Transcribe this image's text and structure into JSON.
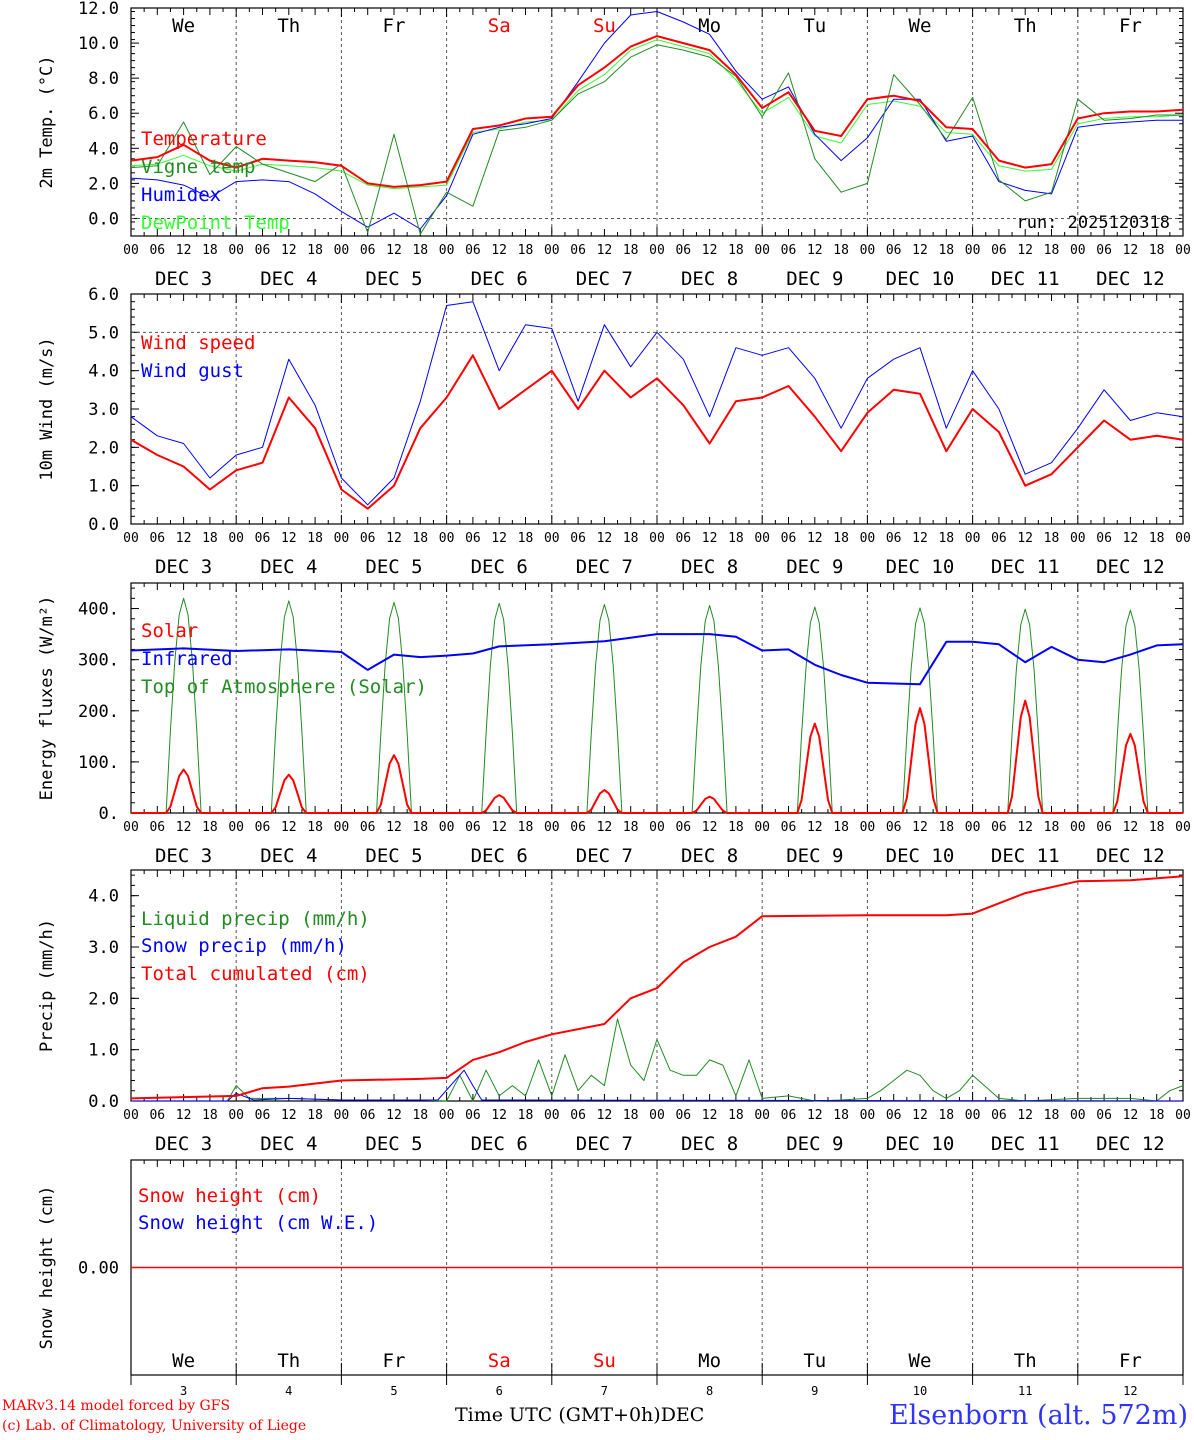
{
  "x_ticks": [
    "00",
    "06",
    "12",
    "18"
  ],
  "days": [
    {
      "dow": "We",
      "dow_color": "#000000",
      "label": "DEC  3",
      "num": "3"
    },
    {
      "dow": "Th",
      "dow_color": "#000000",
      "label": "DEC  4",
      "num": "4"
    },
    {
      "dow": "Fr",
      "dow_color": "#000000",
      "label": "DEC  5",
      "num": "5"
    },
    {
      "dow": "Sa",
      "dow_color": "#ff0000",
      "label": "DEC  6",
      "num": "6"
    },
    {
      "dow": "Su",
      "dow_color": "#ff0000",
      "label": "DEC  7",
      "num": "7"
    },
    {
      "dow": "Mo",
      "dow_color": "#000000",
      "label": "DEC  8",
      "num": "8"
    },
    {
      "dow": "Tu",
      "dow_color": "#000000",
      "label": "DEC  9",
      "num": "9"
    },
    {
      "dow": "We",
      "dow_color": "#000000",
      "label": "DEC 10",
      "num": "10"
    },
    {
      "dow": "Th",
      "dow_color": "#000000",
      "label": "DEC 11",
      "num": "11"
    },
    {
      "dow": "Fr",
      "dow_color": "#000000",
      "label": "DEC 12",
      "num": "12"
    }
  ],
  "footer": {
    "credit_line1": "MARv3.14 model forced by GFS",
    "credit_line2": "(c) Lab. of Climatology, University of Liege",
    "x_axis_title": "Time UTC (GMT+0h)",
    "x_axis_unit": "DEC",
    "station": "Elsenborn (alt. 572m)"
  },
  "chart_data": [
    {
      "type": "line",
      "ylabel": "2m Temp. (°C)",
      "ylim": [
        -1.0,
        12.0
      ],
      "yticks": [
        0,
        2,
        4,
        6,
        8,
        10,
        12
      ],
      "ytick_labels": [
        "0.0",
        "2.0",
        "4.0",
        "6.0",
        "8.0",
        "10.0",
        "12.0"
      ],
      "ref_line": 0,
      "annotation": "run: 2025120318",
      "x_hours": [
        0,
        6,
        12,
        18,
        24,
        30,
        36,
        42,
        48,
        54,
        60,
        66,
        72,
        78,
        84,
        90,
        96,
        102,
        108,
        114,
        120,
        126,
        132,
        138,
        144,
        150,
        156,
        162,
        168,
        174,
        180,
        186,
        192,
        198,
        204,
        210,
        216,
        222,
        228,
        234,
        240
      ],
      "series": [
        {
          "name": "Temperature",
          "color": "#ff0000",
          "width": 2,
          "values": [
            3.3,
            3.5,
            4.2,
            3.3,
            2.9,
            3.4,
            3.3,
            3.2,
            3.0,
            2.0,
            1.8,
            1.9,
            2.1,
            5.1,
            5.3,
            5.7,
            5.8,
            7.6,
            8.6,
            9.8,
            10.4,
            10.0,
            9.6,
            8.2,
            6.3,
            7.2,
            5.0,
            4.7,
            6.8,
            7.0,
            6.7,
            5.2,
            5.1,
            3.3,
            2.9,
            3.1,
            5.7,
            6.0,
            6.1,
            6.1,
            6.2
          ]
        },
        {
          "name": "Vigne temp",
          "color": "#228b22",
          "width": 1,
          "values": [
            2.9,
            3.0,
            5.5,
            2.5,
            4.1,
            3.1,
            2.6,
            2.1,
            3.1,
            -0.8,
            4.8,
            -0.9,
            1.5,
            0.7,
            5.0,
            5.2,
            5.6,
            7.1,
            7.8,
            9.2,
            9.9,
            9.6,
            9.2,
            8.1,
            5.8,
            8.3,
            3.4,
            1.5,
            2.0,
            8.2,
            6.5,
            4.5,
            6.9,
            2.2,
            1.0,
            1.5,
            6.8,
            5.6,
            5.7,
            5.9,
            5.9
          ]
        },
        {
          "name": "Humidex",
          "color": "#0000ff",
          "width": 1,
          "values": [
            2.3,
            2.2,
            1.9,
            1.2,
            2.1,
            2.2,
            2.1,
            1.4,
            0.4,
            -0.5,
            0.3,
            -0.6,
            1.3,
            4.8,
            5.2,
            5.4,
            5.7,
            7.8,
            10.0,
            11.6,
            11.8,
            11.2,
            10.5,
            8.4,
            6.8,
            7.5,
            4.8,
            3.3,
            4.6,
            6.8,
            6.8,
            4.4,
            4.7,
            2.1,
            1.6,
            1.4,
            5.2,
            5.4,
            5.5,
            5.6,
            5.6
          ]
        },
        {
          "name": "DewPoint Temp",
          "color": "#33ff33",
          "width": 1,
          "values": [
            3.0,
            3.1,
            3.6,
            3.0,
            2.7,
            3.1,
            3.0,
            2.9,
            2.7,
            1.9,
            1.7,
            1.8,
            1.9,
            4.9,
            5.1,
            5.5,
            5.6,
            7.3,
            8.2,
            9.6,
            10.2,
            9.8,
            9.4,
            7.9,
            6.0,
            6.9,
            4.7,
            4.3,
            6.5,
            6.7,
            6.4,
            4.9,
            4.8,
            3.0,
            2.7,
            2.8,
            5.4,
            5.7,
            5.8,
            5.8,
            5.9
          ]
        }
      ]
    },
    {
      "type": "line",
      "ylabel": "10m Wind (m/s)",
      "ylim": [
        0.0,
        6.0
      ],
      "yticks": [
        0,
        1,
        2,
        3,
        4,
        5,
        6
      ],
      "ytick_labels": [
        "0.0",
        "1.0",
        "2.0",
        "3.0",
        "4.0",
        "5.0",
        "6.0"
      ],
      "ref_line": 5,
      "x_hours": [
        0,
        6,
        12,
        18,
        24,
        30,
        36,
        42,
        48,
        54,
        60,
        66,
        72,
        78,
        84,
        90,
        96,
        102,
        108,
        114,
        120,
        126,
        132,
        138,
        144,
        150,
        156,
        162,
        168,
        174,
        180,
        186,
        192,
        198,
        204,
        210,
        216,
        222,
        228,
        234,
        240
      ],
      "series": [
        {
          "name": "Wind speed",
          "color": "#ff0000",
          "width": 2,
          "values": [
            2.2,
            1.8,
            1.5,
            0.9,
            1.4,
            1.6,
            3.3,
            2.5,
            0.9,
            0.4,
            1.0,
            2.5,
            3.3,
            4.4,
            3.0,
            3.5,
            4.0,
            3.0,
            4.0,
            3.3,
            3.8,
            3.1,
            2.1,
            3.2,
            3.3,
            3.6,
            2.8,
            1.9,
            2.9,
            3.5,
            3.4,
            1.9,
            3.0,
            2.4,
            1.0,
            1.3,
            2.0,
            2.7,
            2.2,
            2.3,
            2.2
          ]
        },
        {
          "name": "Wind gust",
          "color": "#0000ff",
          "width": 1,
          "values": [
            2.8,
            2.3,
            2.1,
            1.2,
            1.8,
            2.0,
            4.3,
            3.1,
            1.2,
            0.5,
            1.2,
            3.2,
            5.7,
            5.8,
            4.0,
            5.2,
            5.1,
            3.2,
            5.2,
            4.1,
            5.0,
            4.3,
            2.8,
            4.6,
            4.4,
            4.6,
            3.8,
            2.5,
            3.8,
            4.3,
            4.6,
            2.5,
            4.0,
            3.0,
            1.3,
            1.6,
            2.5,
            3.5,
            2.7,
            2.9,
            2.8
          ]
        }
      ]
    },
    {
      "type": "line",
      "ylabel": "Energy fluxes (W/m²)",
      "ylim": [
        0,
        450
      ],
      "yticks": [
        0,
        100,
        200,
        300,
        400
      ],
      "ytick_labels": [
        "0.",
        "100.",
        "200.",
        "300.",
        "400."
      ],
      "days_peaks": {
        "toa_solar": [
          420,
          415,
          412,
          410,
          408,
          406,
          403,
          401,
          399,
          397
        ],
        "solar": [
          85,
          75,
          113,
          35,
          45,
          32,
          175,
          205,
          220,
          155
        ]
      },
      "infrared": {
        "x_hours": [
          0,
          12,
          24,
          36,
          48,
          54,
          60,
          66,
          72,
          78,
          84,
          96,
          108,
          120,
          132,
          138,
          144,
          150,
          156,
          162,
          168,
          180,
          186,
          192,
          198,
          204,
          210,
          216,
          222,
          228,
          234,
          240
        ],
        "values": [
          318,
          322,
          317,
          320,
          315,
          280,
          310,
          305,
          308,
          312,
          326,
          330,
          336,
          350,
          350,
          345,
          318,
          320,
          290,
          270,
          255,
          252,
          335,
          335,
          330,
          295,
          325,
          300,
          295,
          310,
          328,
          330
        ]
      },
      "series": [
        {
          "name": "Solar",
          "color": "#ff0000"
        },
        {
          "name": "Infrared",
          "color": "#0000ff"
        },
        {
          "name": "Top of Atmosphere (Solar)",
          "color": "#228b22"
        }
      ]
    },
    {
      "type": "line",
      "ylabel": "Precip (mm/h)",
      "ylim": [
        0.0,
        4.5
      ],
      "yticks": [
        0,
        1,
        2,
        3,
        4
      ],
      "ytick_labels": [
        "0.0",
        "1.0",
        "2.0",
        "3.0",
        "4.0"
      ],
      "x_hours_total": [
        0,
        24,
        30,
        36,
        48,
        66,
        72,
        78,
        84,
        90,
        96,
        108,
        114,
        120,
        126,
        132,
        138,
        144,
        168,
        180,
        186,
        192,
        204,
        216,
        228,
        240
      ],
      "series": [
        {
          "name": "Liquid precip (mm/h)",
          "color": "#228b22",
          "width": 1,
          "x_hours": [
            0,
            22,
            24,
            27,
            30,
            36,
            48,
            66,
            72,
            75,
            78,
            81,
            84,
            87,
            90,
            93,
            96,
            99,
            102,
            105,
            108,
            111,
            114,
            117,
            120,
            123,
            126,
            129,
            132,
            135,
            138,
            141,
            144,
            150,
            156,
            162,
            168,
            171,
            174,
            177,
            180,
            183,
            186,
            189,
            192,
            198,
            204,
            216,
            228,
            234,
            237,
            240
          ],
          "values": [
            0,
            0,
            0.3,
            0.05,
            0.05,
            0.05,
            0.02,
            0.02,
            0,
            0.5,
            0,
            0.6,
            0.1,
            0.3,
            0.1,
            0.8,
            0.1,
            0.9,
            0.2,
            0.5,
            0.3,
            1.6,
            0.7,
            0.4,
            1.2,
            0.6,
            0.5,
            0.5,
            0.8,
            0.7,
            0.1,
            0.8,
            0.05,
            0.1,
            0,
            0.02,
            0.05,
            0.2,
            0.4,
            0.6,
            0.5,
            0.2,
            0.05,
            0.2,
            0.5,
            0.05,
            0,
            0.05,
            0.05,
            0,
            0.2,
            0.3
          ]
        },
        {
          "name": "Snow precip (mm/h)",
          "color": "#0000ff",
          "width": 1,
          "x_hours": [
            0,
            22,
            24,
            28,
            36,
            48,
            70,
            76,
            78,
            80,
            240
          ],
          "values": [
            0,
            0,
            0.15,
            0.02,
            0.05,
            0.02,
            0.02,
            0.6,
            0.3,
            0.02,
            0
          ]
        },
        {
          "name": "Total cumulated (cm)",
          "color": "#ff0000",
          "width": 2,
          "values": [
            0.05,
            0.1,
            0.25,
            0.28,
            0.4,
            0.43,
            0.45,
            0.8,
            0.95,
            1.15,
            1.3,
            1.5,
            2.0,
            2.2,
            2.7,
            3.0,
            3.2,
            3.6,
            3.62,
            3.62,
            3.62,
            3.65,
            4.05,
            4.28,
            4.3,
            4.38
          ]
        }
      ]
    },
    {
      "type": "line",
      "ylabel": "Snow height (cm)",
      "ylim": [
        -1,
        1
      ],
      "yticks": [
        0
      ],
      "ytick_labels": [
        "0.00"
      ],
      "series": [
        {
          "name": "Snow height (cm)",
          "color": "#ff0000",
          "width": 1,
          "values": [
            0,
            0
          ]
        },
        {
          "name": "Snow height (cm W.E.)",
          "color": "#0000ff",
          "width": 1,
          "values": [
            0,
            0
          ]
        }
      ]
    }
  ]
}
